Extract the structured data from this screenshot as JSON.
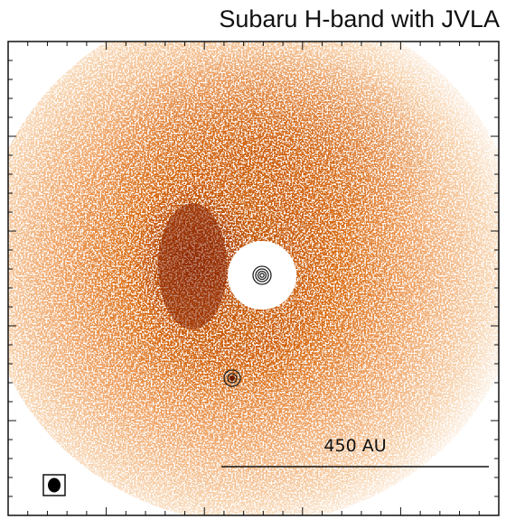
{
  "title": "Subaru H-band with JVLA",
  "scale_bar": {
    "label": "450 AU"
  }
}
